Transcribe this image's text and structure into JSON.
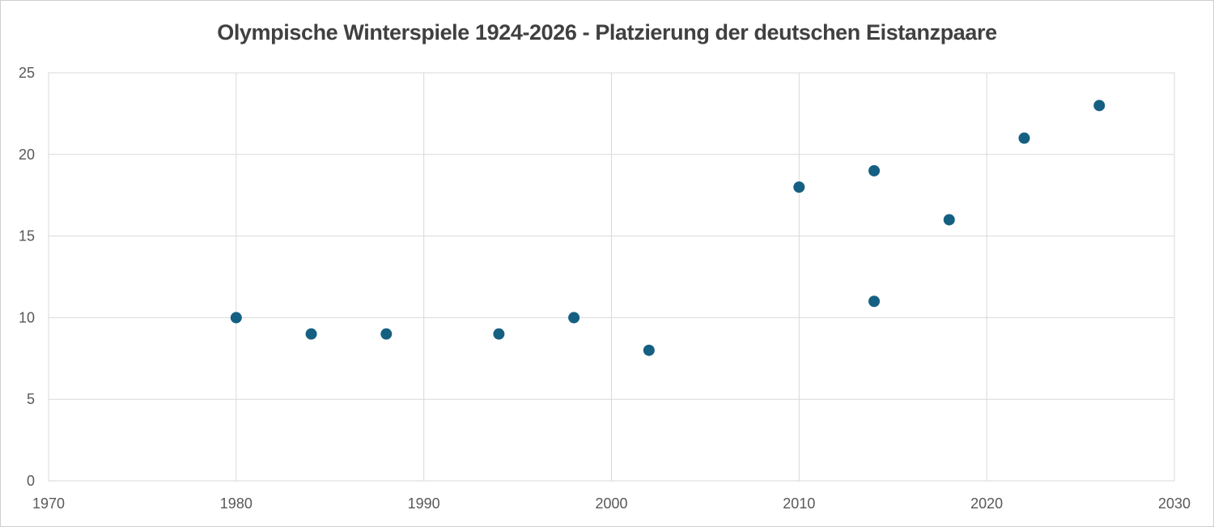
{
  "chart_data": {
    "type": "scatter",
    "title": "Olympische Winterspiele 1924-2026 - Platzierung der deutschen Eistanzpaare",
    "points": [
      {
        "x": 1980,
        "y": 10
      },
      {
        "x": 1984,
        "y": 9
      },
      {
        "x": 1988,
        "y": 9
      },
      {
        "x": 1994,
        "y": 9
      },
      {
        "x": 1998,
        "y": 10
      },
      {
        "x": 2002,
        "y": 8
      },
      {
        "x": 2010,
        "y": 18
      },
      {
        "x": 2014,
        "y": 11
      },
      {
        "x": 2014,
        "y": 19
      },
      {
        "x": 2018,
        "y": 16
      },
      {
        "x": 2022,
        "y": 21
      },
      {
        "x": 2026,
        "y": 23
      }
    ],
    "xlim": [
      1970,
      2030
    ],
    "ylim": [
      0,
      25
    ],
    "x_ticks": [
      "1970",
      "1980",
      "1990",
      "2000",
      "2010",
      "2020",
      "2030"
    ],
    "y_ticks": [
      "0",
      "5",
      "10",
      "15",
      "20",
      "25"
    ],
    "grid": true,
    "legend_position": "none",
    "xlabel": "",
    "ylabel": "",
    "colors": {
      "marker": "#156082",
      "gridline": "#d9d9d9",
      "plot_border": "#d9d9d9",
      "tick_label": "#595959",
      "title": "#404040",
      "background": "#ffffff"
    }
  }
}
